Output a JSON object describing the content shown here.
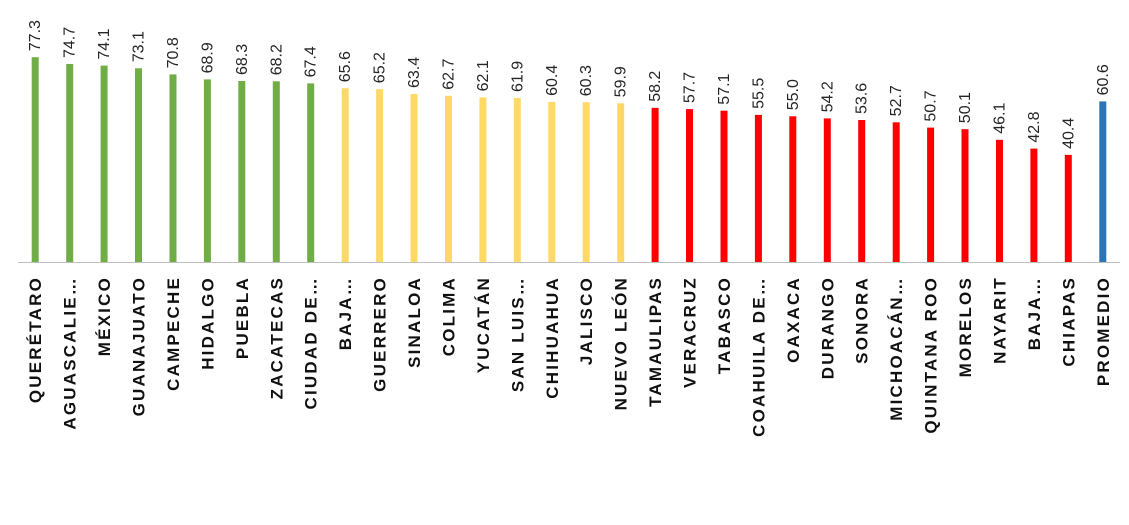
{
  "chart_data": {
    "type": "bar",
    "orientation": "vertical",
    "title": "",
    "xlabel": "",
    "ylabel": "",
    "ylim": [
      0,
      80
    ],
    "grid": false,
    "legend": "none",
    "categories": [
      "QUERÉTARO",
      "AGUASCALIE…",
      "MÉXICO",
      "GUANAJUATO",
      "CAMPECHE",
      "HIDALGO",
      "PUEBLA",
      "ZACATECAS",
      "CIUDAD DE…",
      "BAJA…",
      "GUERRERO",
      "SINALOA",
      "COLIMA",
      "YUCATÁN",
      "SAN LUIS…",
      "CHIHUAHUA",
      "JALISCO",
      "NUEVO LEÓN",
      "TAMAULIPAS",
      "VERACRUZ",
      "TABASCO",
      "COAHUILA DE…",
      "OAXACA",
      "DURANGO",
      "SONORA",
      "MICHOACÁN…",
      "QUINTANA ROO",
      "MORELOS",
      "NAYARIT",
      "BAJA…",
      "CHIAPAS",
      "PROMEDIO"
    ],
    "values": [
      77.3,
      74.7,
      74.1,
      73.1,
      70.8,
      68.9,
      68.3,
      68.2,
      67.4,
      65.6,
      65.2,
      63.4,
      62.7,
      62.1,
      61.9,
      60.4,
      60.3,
      59.9,
      58.2,
      57.7,
      57.1,
      55.5,
      55.0,
      54.2,
      53.6,
      52.7,
      50.7,
      50.1,
      46.1,
      42.8,
      40.4,
      60.6
    ],
    "value_labels": [
      "77.3",
      "74.7",
      "74.1",
      "73.1",
      "70.8",
      "68.9",
      "68.3",
      "68.2",
      "67.4",
      "65.6",
      "65.2",
      "63.4",
      "62.7",
      "62.1",
      "61.9",
      "60.4",
      "60.3",
      "59.9",
      "58.2",
      "57.7",
      "57.1",
      "55.5",
      "55.0",
      "54.2",
      "53.6",
      "52.7",
      "50.7",
      "50.1",
      "46.1",
      "42.8",
      "40.4",
      "60.6"
    ],
    "bar_colors": [
      "#70ad47",
      "#70ad47",
      "#70ad47",
      "#70ad47",
      "#70ad47",
      "#70ad47",
      "#70ad47",
      "#70ad47",
      "#70ad47",
      "#ffd966",
      "#ffd966",
      "#ffd966",
      "#ffd966",
      "#ffd966",
      "#ffd966",
      "#ffd966",
      "#ffd966",
      "#ffd966",
      "#ff0000",
      "#ff0000",
      "#ff0000",
      "#ff0000",
      "#ff0000",
      "#ff0000",
      "#ff0000",
      "#ff0000",
      "#ff0000",
      "#ff0000",
      "#ff0000",
      "#ff0000",
      "#ff0000",
      "#2e75b6"
    ],
    "axis_color": "#bfbfbf"
  }
}
